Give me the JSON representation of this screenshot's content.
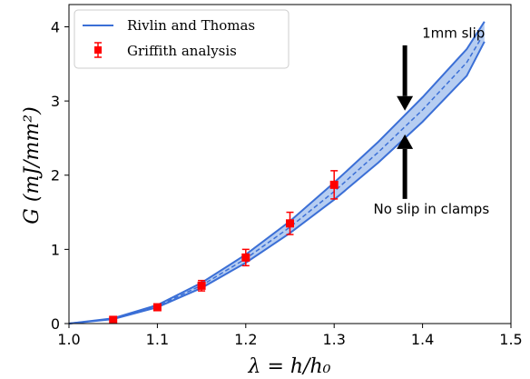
{
  "chart_data": {
    "type": "line",
    "xlabel": "λ = h/h₀",
    "ylabel": "G (mJ/mm²)",
    "xlim": [
      1.0,
      1.5
    ],
    "ylim": [
      0,
      4.3
    ],
    "xticks": [
      "1.0",
      "1.1",
      "1.2",
      "1.3",
      "1.4",
      "1.5"
    ],
    "yticks": [
      "0",
      "1",
      "2",
      "3",
      "4"
    ],
    "grid": false,
    "legend_position": "top-left",
    "colors": {
      "band_fill": "#a9c4ee",
      "line": "#3b6fd6",
      "marker": "#ff0000",
      "arrow": "#000000"
    },
    "series": [
      {
        "name": "Rivlin and Thomas",
        "kind": "band",
        "x": [
          1.0,
          1.05,
          1.1,
          1.15,
          1.2,
          1.25,
          1.3,
          1.35,
          1.4,
          1.45,
          1.47
        ],
        "upper": [
          0,
          0.07,
          0.25,
          0.55,
          0.93,
          1.38,
          1.9,
          2.45,
          3.05,
          3.7,
          4.07
        ],
        "lower": [
          0,
          0.06,
          0.22,
          0.48,
          0.82,
          1.22,
          1.67,
          2.17,
          2.72,
          3.34,
          3.8
        ],
        "mid": [
          0,
          0.065,
          0.235,
          0.515,
          0.875,
          1.3,
          1.78,
          2.31,
          2.88,
          3.52,
          3.92
        ]
      },
      {
        "name": "Griffith analysis",
        "kind": "errorbar",
        "x": [
          1.05,
          1.1,
          1.15,
          1.2,
          1.25,
          1.3
        ],
        "y": [
          0.05,
          0.22,
          0.51,
          0.89,
          1.35,
          1.87
        ],
        "yerr": [
          0.03,
          0.04,
          0.07,
          0.11,
          0.15,
          0.19
        ]
      }
    ],
    "annotations": [
      {
        "text": "1mm slip",
        "x": 1.435,
        "y": 3.85
      },
      {
        "text": "No slip in clamps",
        "x": 1.41,
        "y": 1.48
      }
    ],
    "arrows": [
      {
        "from_x": 1.38,
        "from_y": 3.75,
        "to_x": 1.38,
        "to_y": 2.87
      },
      {
        "from_x": 1.38,
        "from_y": 1.68,
        "to_x": 1.38,
        "to_y": 2.55
      }
    ]
  }
}
